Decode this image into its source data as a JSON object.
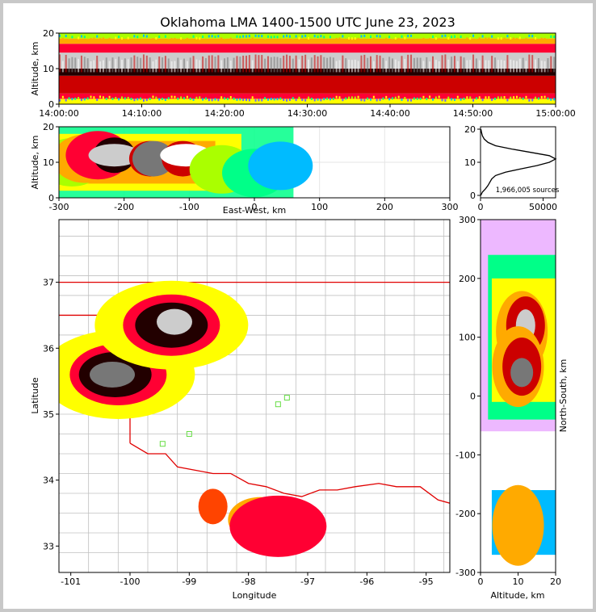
{
  "window": {
    "title": "Oklahoma LMA 1400-1500 UTC June 23, 2023"
  },
  "colors": {
    "page_border": "#c8c8c8",
    "state_line": "#e00000",
    "county_line": "#c0c0c0",
    "station_marker": "#66dd44",
    "density_scale": [
      "#cc33ff",
      "#6666ff",
      "#00bbff",
      "#00ff88",
      "#aaff00",
      "#ffff00",
      "#ffaa00",
      "#ff4400",
      "#ff0033",
      "#cc0000",
      "#220000",
      "#777777",
      "#cccccc",
      "#ffffff"
    ]
  },
  "chart_data": [
    {
      "id": "time_height",
      "type": "heatmap",
      "ylabel": "Altitude, km",
      "xlim": [
        "14:00:00",
        "15:00:00"
      ],
      "ylim": [
        0,
        20
      ],
      "x_ticks": [
        "14:00:00",
        "14:10:00",
        "14:20:00",
        "14:30:00",
        "14:40:00",
        "14:50:00",
        "15:00:00"
      ],
      "y_ticks": [
        0,
        10,
        20
      ],
      "bands": [
        {
          "y_from": 0,
          "y_to": 1.5,
          "level": 5
        },
        {
          "y_from": 1.5,
          "y_to": 3,
          "level": 8
        },
        {
          "y_from": 3,
          "y_to": 8,
          "level": 9
        },
        {
          "y_from": 8,
          "y_to": 10,
          "level": 10
        },
        {
          "y_from": 10,
          "y_to": 14.5,
          "level": 12
        },
        {
          "y_from": 14.5,
          "y_to": 17,
          "level": 8
        },
        {
          "y_from": 17,
          "y_to": 18.5,
          "level": 6
        },
        {
          "y_from": 18.5,
          "y_to": 20,
          "level": 4
        }
      ]
    },
    {
      "id": "east_west_altitude",
      "type": "heatmap",
      "xlabel": "East-West, km",
      "ylabel": "Altitude, km",
      "xlim": [
        -300,
        300
      ],
      "ylim": [
        0,
        20
      ],
      "x_ticks": [
        -300,
        -200,
        -100,
        0,
        100,
        200,
        300
      ],
      "y_ticks": [
        0,
        10,
        20
      ],
      "grid": true,
      "cells": [
        {
          "x": -280,
          "y": 10,
          "level": 4
        },
        {
          "x": -260,
          "y": 11,
          "level": 6
        },
        {
          "x": -240,
          "y": 12,
          "level": 8
        },
        {
          "x": -215,
          "y": 12,
          "level": 10
        },
        {
          "x": -215,
          "y": 12,
          "level": 12
        },
        {
          "x": -160,
          "y": 11,
          "level": 9
        },
        {
          "x": -155,
          "y": 11,
          "level": 11
        },
        {
          "x": -110,
          "y": 11,
          "level": 9
        },
        {
          "x": -105,
          "y": 12,
          "level": 13
        },
        {
          "x": -50,
          "y": 8,
          "level": 4
        },
        {
          "x": 0,
          "y": 7,
          "level": 3
        },
        {
          "x": 40,
          "y": 9,
          "level": 2
        }
      ]
    },
    {
      "id": "altitude_histogram",
      "type": "line",
      "xlim": [
        0,
        60000
      ],
      "ylim": [
        0,
        20
      ],
      "x_ticks": [
        0,
        50000
      ],
      "y_ticks": [
        0,
        10,
        20
      ],
      "annotation": "1,966,005 sources",
      "x": [
        200,
        1500,
        4000,
        6000,
        7500,
        9000,
        12000,
        20000,
        32000,
        45000,
        55000,
        60000,
        55000,
        40000,
        25000,
        12000,
        6000,
        3000,
        1500,
        800,
        300
      ],
      "y": [
        0,
        1,
        2,
        3,
        4,
        5,
        6,
        7,
        8,
        9,
        10,
        11,
        12,
        13,
        14,
        15,
        16,
        17,
        18,
        19,
        20
      ]
    },
    {
      "id": "plan_view",
      "type": "heatmap",
      "xlabel": "Longitude",
      "ylabel": "Latitude",
      "xlim": [
        -101.2,
        -94.6
      ],
      "ylim": [
        32.6,
        37.95
      ],
      "x_ticks": [
        -101,
        -100,
        -99,
        -98,
        -97,
        -96,
        -95
      ],
      "y_ticks": [
        33,
        34,
        35,
        36,
        37
      ],
      "blobs": [
        {
          "lon": -100.2,
          "lat": 35.6,
          "level": 5
        },
        {
          "lon": -100.2,
          "lat": 35.6,
          "level": 8
        },
        {
          "lon": -100.25,
          "lat": 35.6,
          "level": 10
        },
        {
          "lon": -100.3,
          "lat": 35.6,
          "level": 11
        },
        {
          "lon": -99.3,
          "lat": 36.35,
          "level": 5
        },
        {
          "lon": -99.3,
          "lat": 36.35,
          "level": 8
        },
        {
          "lon": -99.3,
          "lat": 36.35,
          "level": 10
        },
        {
          "lon": -99.25,
          "lat": 36.4,
          "level": 12
        },
        {
          "lon": -98.6,
          "lat": 33.6,
          "level": 7
        },
        {
          "lon": -97.8,
          "lat": 33.4,
          "level": 6
        },
        {
          "lon": -97.5,
          "lat": 33.3,
          "level": 8
        }
      ],
      "stations": [
        {
          "lon": -99.45,
          "lat": 34.55
        },
        {
          "lon": -99.0,
          "lat": 34.7
        },
        {
          "lon": -97.5,
          "lat": 35.15
        },
        {
          "lon": -97.35,
          "lat": 35.25
        }
      ]
    },
    {
      "id": "altitude_north_south",
      "type": "heatmap",
      "xlabel": "Altitude, km",
      "ylabel": "North-South, km",
      "xlim": [
        0,
        20
      ],
      "ylim": [
        -300,
        300
      ],
      "x_ticks": [
        0,
        10,
        20
      ],
      "y_ticks": [
        -300,
        -200,
        -100,
        0,
        100,
        200,
        300
      ],
      "blobs": [
        {
          "alt": 11,
          "ns": 110,
          "level": 6
        },
        {
          "alt": 12,
          "ns": 120,
          "level": 9
        },
        {
          "alt": 12,
          "ns": 120,
          "level": 12
        },
        {
          "alt": 10,
          "ns": 50,
          "level": 6
        },
        {
          "alt": 11,
          "ns": 50,
          "level": 9
        },
        {
          "alt": 11,
          "ns": 40,
          "level": 11
        },
        {
          "alt": 10,
          "ns": -210,
          "level": 4
        },
        {
          "alt": 10,
          "ns": -220,
          "level": 6
        }
      ]
    }
  ]
}
